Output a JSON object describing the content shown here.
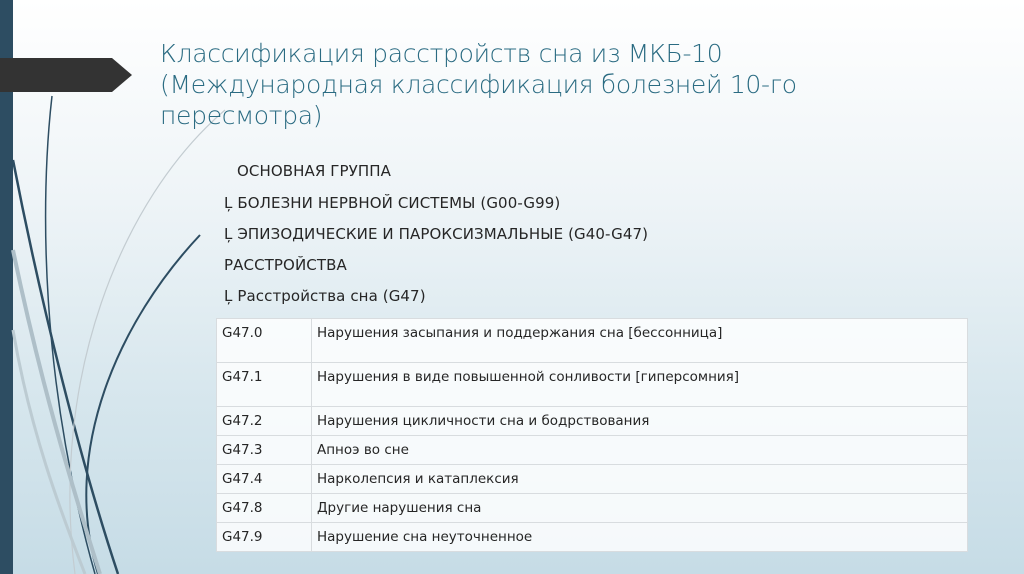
{
  "slide": {
    "title": "Классификация расстройств сна из МКБ-10 (Международная классификация болезней 10-го пересмотра)",
    "hierarchy": [
      "ОСНОВНАЯ ГРУППА",
      "Ļ БОЛЕЗНИ НЕРВНОЙ СИСТЕМЫ (G00-G99)",
      "Ļ ЭПИЗОДИЧЕСКИЕ И ПАРОКСИЗМАЛЬНЫЕ (G40-G47)",
      "РАССТРОЙСТВА",
      "Ļ Расстройства сна (G47)"
    ],
    "table": [
      {
        "code": "G47.0",
        "desc": "Нарушения засыпания и поддержания сна [бессонница]"
      },
      {
        "code": "G47.1",
        "desc": "Нарушения в виде повышенной сонливости [гиперсомния]"
      },
      {
        "code": "G47.2",
        "desc": "Нарушения цикличности сна и бодрствования"
      },
      {
        "code": "G47.3",
        "desc": "Апноэ во сне"
      },
      {
        "code": "G47.4",
        "desc": "Нарколепсия и катаплексия"
      },
      {
        "code": "G47.8",
        "desc": "Другие нарушения сна"
      },
      {
        "code": "G47.9",
        "desc": "Нарушение сна неуточненное"
      }
    ]
  },
  "colors": {
    "accent": "#2a6b82",
    "sidebar": "#2d4d62",
    "arrow": "#333333"
  }
}
